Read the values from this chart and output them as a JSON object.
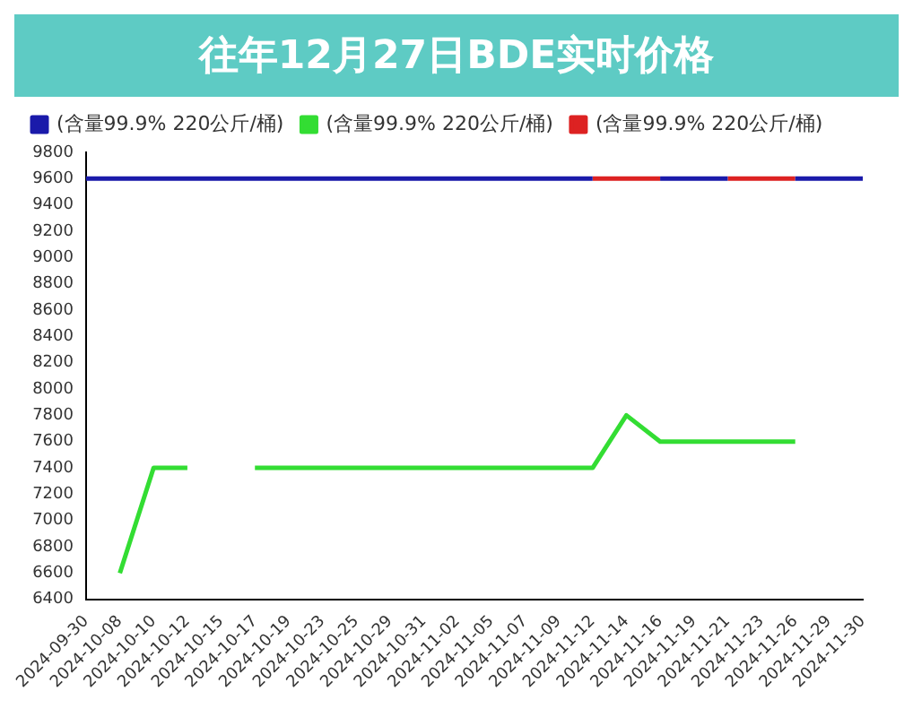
{
  "chart_data": {
    "type": "line",
    "title": "往年12月27日BDE实时价格",
    "categories": [
      "2024-09-30",
      "2024-10-08",
      "2024-10-10",
      "2024-10-12",
      "2024-10-15",
      "2024-10-17",
      "2024-10-19",
      "2024-10-23",
      "2024-10-25",
      "2024-10-29",
      "2024-10-31",
      "2024-11-02",
      "2024-11-05",
      "2024-11-07",
      "2024-11-09",
      "2024-11-12",
      "2024-11-14",
      "2024-11-16",
      "2024-11-19",
      "2024-11-21",
      "2024-11-23",
      "2024-11-26",
      "2024-11-29",
      "2024-11-30"
    ],
    "series": [
      {
        "name": "(含量99.9% 220公斤/桶)",
        "color": "#dd2222",
        "values": [
          null,
          null,
          null,
          null,
          null,
          null,
          null,
          null,
          null,
          null,
          null,
          null,
          null,
          null,
          null,
          9600,
          9600,
          9600,
          null,
          9600,
          9600,
          9600,
          null,
          null
        ]
      },
      {
        "name": "(含量99.9% 220公斤/桶)",
        "color": "#33dd33",
        "values": [
          null,
          6600,
          7400,
          7400,
          null,
          7400,
          7400,
          7400,
          7400,
          7400,
          7400,
          7400,
          7400,
          7400,
          7400,
          7400,
          7800,
          7600,
          7600,
          7600,
          7600,
          7600,
          null,
          null
        ]
      },
      {
        "name": "(含量99.9% 220公斤/桶)",
        "color": "#1a1aaa",
        "values": [
          9600,
          9600,
          9600,
          9600,
          9600,
          9600,
          9600,
          9600,
          9600,
          9600,
          9600,
          9600,
          9600,
          9600,
          9600,
          9600,
          null,
          9600,
          9600,
          9600,
          null,
          9600,
          9600,
          9600
        ]
      }
    ],
    "ylim": [
      6400,
      9800
    ],
    "yticks": [
      6400,
      6600,
      6800,
      7000,
      7200,
      7400,
      7600,
      7800,
      8000,
      8200,
      8400,
      8600,
      8800,
      9000,
      9200,
      9400,
      9600,
      9800
    ],
    "grid": false,
    "legend": "top left",
    "marker": "none",
    "line_style": "solid"
  }
}
